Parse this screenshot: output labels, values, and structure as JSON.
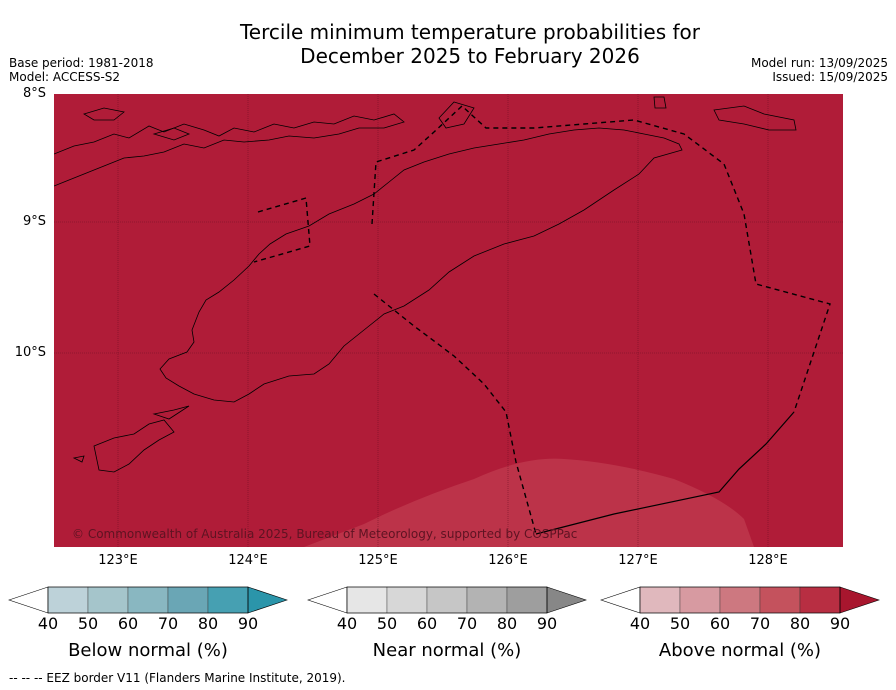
{
  "title": {
    "line1": "Tercile minimum temperature probabilities for",
    "line2": "December 2025 to February 2026"
  },
  "meta": {
    "base_period": "Base period: 1981-2018",
    "model": "Model: ACCESS-S2",
    "model_run": "Model run: 13/09/2025",
    "issued": "Issued: 15/09/2025"
  },
  "map": {
    "background_color": "#b01c38",
    "secondary_color": "#bc3349",
    "lat_labels": [
      "8°S",
      "9°S",
      "10°S"
    ],
    "lon_labels": [
      "123°E",
      "124°E",
      "125°E",
      "126°E",
      "127°E",
      "128°E"
    ],
    "copyright": "© Commonwealth of Australia 2025, Bureau of Meteorology, supported by COSPPac"
  },
  "colorbars": [
    {
      "label": "Below normal (%)",
      "ticks": [
        "40",
        "50",
        "60",
        "70",
        "80",
        "90"
      ],
      "colors": [
        "#bdd2d9",
        "#a5c5cb",
        "#89b7c1",
        "#6aa6b5",
        "#46a0b2",
        "#2b95aa"
      ]
    },
    {
      "label": "Near normal (%)",
      "ticks": [
        "40",
        "50",
        "60",
        "70",
        "80",
        "90"
      ],
      "colors": [
        "#e6e6e6",
        "#d7d7d7",
        "#c6c6c6",
        "#b3b3b3",
        "#9e9e9e",
        "#878787"
      ]
    },
    {
      "label": "Above normal (%)",
      "ticks": [
        "40",
        "50",
        "60",
        "70",
        "80",
        "90"
      ],
      "colors": [
        "#e0b8bd",
        "#d79aa1",
        "#cd7880",
        "#c4525d",
        "#b82e42",
        "#a8162e"
      ]
    }
  ],
  "footer": "--  --  -- EEZ border V11 (Flanders Marine Institute, 2019)."
}
